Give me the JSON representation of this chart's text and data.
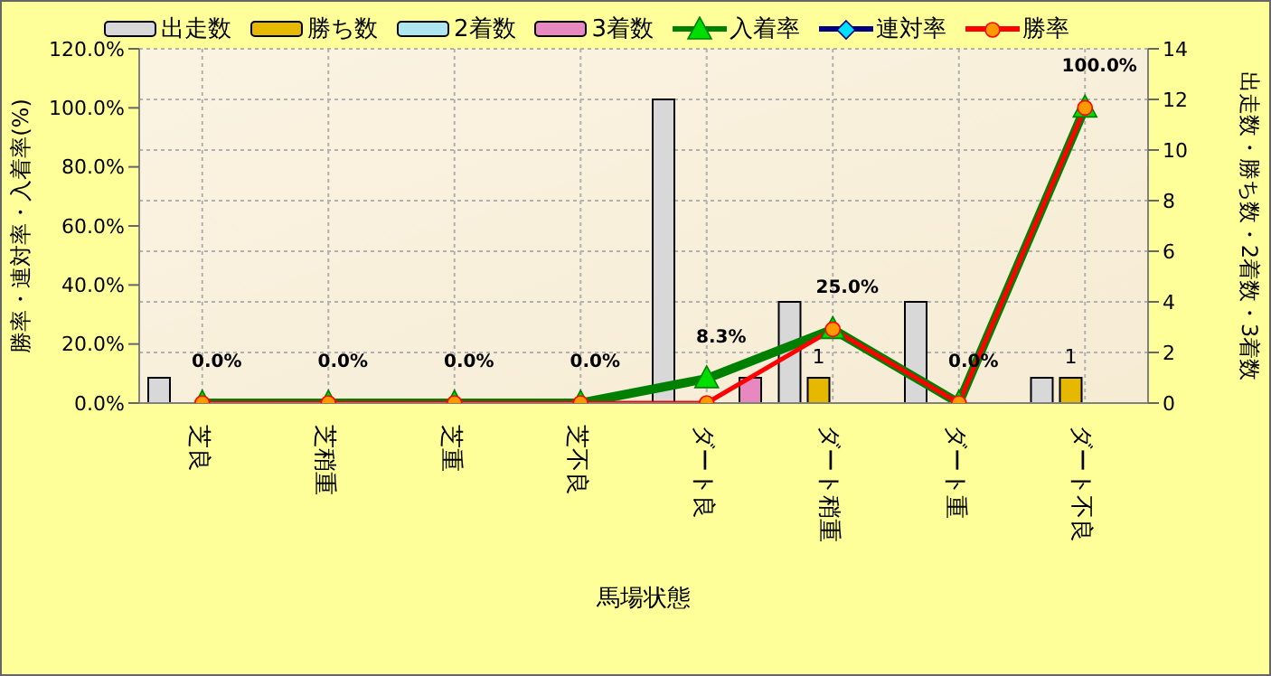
{
  "chart_data": {
    "type": "bar",
    "xlabel": "馬場状態",
    "ylabel": "勝率・連対率・入着率(%)",
    "y2label": "出走数・勝ち数・2着数・3着数",
    "categories": [
      "芝良",
      "芝稍重",
      "芝重",
      "芝不良",
      "ダート良",
      "ダート稍重",
      "ダート重",
      "ダート不良"
    ],
    "series": [
      {
        "name": "出走数",
        "axis": "y2",
        "color": "#d8d8d8",
        "values": [
          1,
          0,
          0,
          0,
          12,
          4,
          4,
          1
        ]
      },
      {
        "name": "勝ち数",
        "axis": "y2",
        "color": "#e6b800",
        "values": [
          0,
          0,
          0,
          0,
          0,
          1,
          0,
          1
        ],
        "value_labels": [
          null,
          null,
          null,
          null,
          null,
          "1",
          null,
          "1"
        ]
      },
      {
        "name": "2着数",
        "axis": "y2",
        "color": "#aee6f0",
        "values": [
          0,
          0,
          0,
          0,
          0,
          0,
          0,
          0
        ]
      },
      {
        "name": "3着数",
        "axis": "y2",
        "color": "#e888c0",
        "values": [
          0,
          0,
          0,
          0,
          1,
          0,
          0,
          0
        ]
      },
      {
        "name": "入着率",
        "type": "line",
        "color": "#008000",
        "marker": "triangle",
        "values": [
          0,
          0,
          0,
          0,
          8.3,
          25,
          0,
          100
        ],
        "value_labels": [
          "0.0%",
          "0.0%",
          "0.0%",
          "0.0%",
          "8.3%",
          "25.0%",
          "0.0%",
          "100.0%"
        ]
      },
      {
        "name": "連対率",
        "type": "line",
        "color": "#000080",
        "marker": "diamond",
        "values": [
          null,
          null,
          null,
          null,
          null,
          null,
          null,
          null
        ]
      },
      {
        "name": "勝率",
        "type": "line",
        "color": "#ff0000",
        "marker": "circle",
        "values": [
          0,
          0,
          0,
          0,
          0,
          25,
          0,
          100
        ]
      }
    ],
    "ylim": [
      0,
      120
    ],
    "yticks": [
      {
        "value": 0,
        "label": "0.0%"
      },
      {
        "value": 20,
        "label": "20.0%"
      },
      {
        "value": 40,
        "label": "40.0%"
      },
      {
        "value": 60,
        "label": "60.0%"
      },
      {
        "value": 80,
        "label": "80.0%"
      },
      {
        "value": 100,
        "label": "100.0%"
      },
      {
        "value": 120,
        "label": "120.0%"
      }
    ],
    "y2lim": [
      0,
      14
    ],
    "y2ticks": [
      0,
      2,
      4,
      6,
      8,
      10,
      12,
      14
    ],
    "grid": true,
    "legend": "top left"
  }
}
